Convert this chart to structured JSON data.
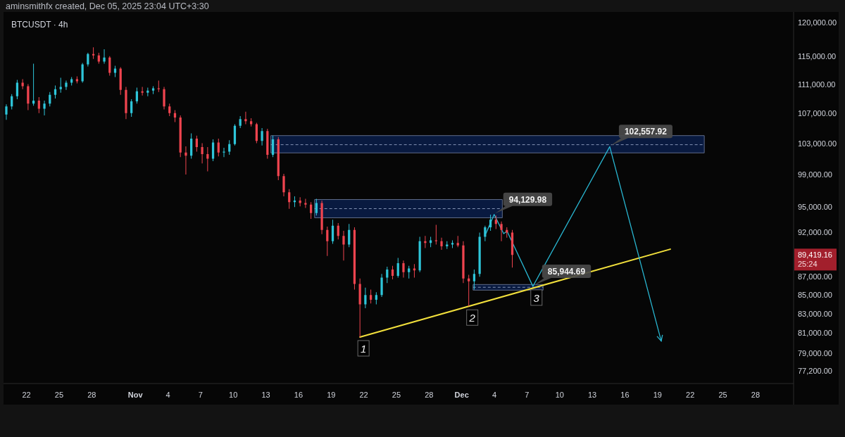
{
  "chart_data": {
    "type": "candlestick",
    "title": "BTCUSDT · 4h",
    "log": true,
    "xlim": [
      "2025-10-20T02:00",
      "2025-12-31T12:00"
    ],
    "ylim": [
      76000,
      121500
    ],
    "xticks": [
      {
        "value": "2025-10-22",
        "label": "22"
      },
      {
        "value": "2025-10-25",
        "label": "25"
      },
      {
        "value": "2025-10-28",
        "label": "28"
      },
      {
        "value": "2025-11-01",
        "label": "Nov"
      },
      {
        "value": "2025-11-04",
        "label": "4"
      },
      {
        "value": "2025-11-07",
        "label": "7"
      },
      {
        "value": "2025-11-10",
        "label": "10"
      },
      {
        "value": "2025-11-13",
        "label": "13"
      },
      {
        "value": "2025-11-16",
        "label": "16"
      },
      {
        "value": "2025-11-19",
        "label": "19"
      },
      {
        "value": "2025-11-22",
        "label": "22"
      },
      {
        "value": "2025-11-25",
        "label": "25"
      },
      {
        "value": "2025-11-28",
        "label": "28"
      },
      {
        "value": "2025-12-01",
        "label": "Dec"
      },
      {
        "value": "2025-12-04",
        "label": "4"
      },
      {
        "value": "2025-12-07",
        "label": "7"
      },
      {
        "value": "2025-12-10",
        "label": "10"
      },
      {
        "value": "2025-12-13",
        "label": "13"
      },
      {
        "value": "2025-12-16",
        "label": "16"
      },
      {
        "value": "2025-12-19",
        "label": "19"
      },
      {
        "value": "2025-12-22",
        "label": "22"
      },
      {
        "value": "2025-12-25",
        "label": "25"
      },
      {
        "value": "2025-12-28",
        "label": "28"
      }
    ],
    "yticks": [
      {
        "value": 120000,
        "label": "120,000.00"
      },
      {
        "value": 115000,
        "label": "115,000.00"
      },
      {
        "value": 111000,
        "label": "111,000.00"
      },
      {
        "value": 107000,
        "label": "107,000.00"
      },
      {
        "value": 103000,
        "label": "103,000.00"
      },
      {
        "value": 99000,
        "label": "99,000.00"
      },
      {
        "value": 95000,
        "label": "95,000.00"
      },
      {
        "value": 92000,
        "label": "92,000.00"
      },
      {
        "value": 87000,
        "label": "87,000.00"
      },
      {
        "value": 85000,
        "label": "85,000.00"
      },
      {
        "value": 83000,
        "label": "83,000.00"
      },
      {
        "value": 81000,
        "label": "81,000.00"
      },
      {
        "value": 79000,
        "label": "79,000.00"
      },
      {
        "value": 77200,
        "label": "77,200.00"
      }
    ],
    "x": [
      "2025-10-20T03:30",
      "2025-10-20T15:30",
      "2025-10-21T03:30",
      "2025-10-21T15:30",
      "2025-10-22T03:30",
      "2025-10-22T15:30",
      "2025-10-23T03:30",
      "2025-10-23T15:30",
      "2025-10-24T03:30",
      "2025-10-24T15:30",
      "2025-10-25T03:30",
      "2025-10-25T15:30",
      "2025-10-26T03:30",
      "2025-10-26T15:30",
      "2025-10-27T03:30",
      "2025-10-27T15:30",
      "2025-10-28T03:30",
      "2025-10-28T15:30",
      "2025-10-29T03:30",
      "2025-10-29T15:30",
      "2025-10-30T03:30",
      "2025-10-30T15:30",
      "2025-10-31T03:30",
      "2025-10-31T15:30",
      "2025-11-01T03:30",
      "2025-11-01T15:30",
      "2025-11-02T03:30",
      "2025-11-02T15:30",
      "2025-11-03T03:30",
      "2025-11-03T15:30",
      "2025-11-04T03:30",
      "2025-11-04T15:30",
      "2025-11-05T03:30",
      "2025-11-05T15:30",
      "2025-11-06T03:30",
      "2025-11-06T15:30",
      "2025-11-07T03:30",
      "2025-11-07T15:30",
      "2025-11-08T03:30",
      "2025-11-08T15:30",
      "2025-11-09T03:30",
      "2025-11-09T15:30",
      "2025-11-10T03:30",
      "2025-11-10T15:30",
      "2025-11-11T03:30",
      "2025-11-11T15:30",
      "2025-11-12T03:30",
      "2025-11-12T15:30",
      "2025-11-13T03:30",
      "2025-11-13T15:30",
      "2025-11-14T03:30",
      "2025-11-14T15:30",
      "2025-11-15T03:30",
      "2025-11-15T15:30",
      "2025-11-16T03:30",
      "2025-11-16T15:30",
      "2025-11-17T03:30",
      "2025-11-17T15:30",
      "2025-11-18T03:30",
      "2025-11-18T15:30",
      "2025-11-19T03:30",
      "2025-11-19T15:30",
      "2025-11-20T03:30",
      "2025-11-20T15:30",
      "2025-11-21T03:30",
      "2025-11-21T15:30",
      "2025-11-22T03:30",
      "2025-11-22T15:30",
      "2025-11-23T03:30",
      "2025-11-23T15:30",
      "2025-11-24T03:30",
      "2025-11-24T15:30",
      "2025-11-25T03:30",
      "2025-11-25T15:30",
      "2025-11-26T03:30",
      "2025-11-26T15:30",
      "2025-11-27T03:30",
      "2025-11-27T15:30",
      "2025-11-28T03:30",
      "2025-11-28T15:30",
      "2025-11-29T03:30",
      "2025-11-29T15:30",
      "2025-11-30T03:30",
      "2025-11-30T15:30",
      "2025-12-01T03:30",
      "2025-12-01T15:30",
      "2025-12-02T03:30",
      "2025-12-02T15:30",
      "2025-12-03T03:30",
      "2025-12-03T15:30",
      "2025-12-04T03:30",
      "2025-12-04T15:30",
      "2025-12-05T03:30",
      "2025-12-05T15:30"
    ],
    "ohlc": [
      [
        106800,
        108200,
        106100,
        107900
      ],
      [
        107900,
        109600,
        107500,
        109300
      ],
      [
        109300,
        111600,
        108900,
        111200
      ],
      [
        111200,
        111700,
        110300,
        110700
      ],
      [
        110700,
        111000,
        107400,
        108300
      ],
      [
        108300,
        113900,
        108000,
        108700
      ],
      [
        108700,
        109200,
        107000,
        107600
      ],
      [
        107600,
        108700,
        106700,
        108300
      ],
      [
        108300,
        109900,
        107900,
        109500
      ],
      [
        109500,
        110800,
        109000,
        110300
      ],
      [
        110300,
        111900,
        109800,
        110600
      ],
      [
        110600,
        111500,
        110200,
        111200
      ],
      [
        111200,
        112000,
        110800,
        111700
      ],
      [
        111700,
        112100,
        111100,
        111400
      ],
      [
        111400,
        114000,
        111200,
        113800
      ],
      [
        113800,
        115500,
        113500,
        115300
      ],
      [
        115300,
        116300,
        114600,
        115100
      ],
      [
        115100,
        115500,
        113900,
        114200
      ],
      [
        114200,
        116000,
        113900,
        114800
      ],
      [
        114800,
        115000,
        112200,
        112600
      ],
      [
        112600,
        113600,
        112000,
        113200
      ],
      [
        113200,
        113400,
        109500,
        110200
      ],
      [
        110200,
        110600,
        106200,
        107000
      ],
      [
        107000,
        108900,
        106500,
        108600
      ],
      [
        108600,
        110500,
        108300,
        110000
      ],
      [
        110000,
        110600,
        109400,
        109800
      ],
      [
        109800,
        110500,
        109300,
        110100
      ],
      [
        110100,
        110700,
        109600,
        110400
      ],
      [
        110400,
        111500,
        109900,
        110300
      ],
      [
        110300,
        110600,
        107500,
        107900
      ],
      [
        107900,
        108300,
        106600,
        107000
      ],
      [
        107000,
        107400,
        105800,
        106400
      ],
      [
        106400,
        106700,
        101200,
        101800
      ],
      [
        101800,
        102600,
        99000,
        101400
      ],
      [
        101400,
        104300,
        101000,
        103600
      ],
      [
        103600,
        104000,
        101900,
        102500
      ],
      [
        102500,
        103000,
        100400,
        101600
      ],
      [
        101600,
        102500,
        99400,
        101000
      ],
      [
        101000,
        103500,
        100700,
        103100
      ],
      [
        103100,
        103600,
        101300,
        101800
      ],
      [
        101800,
        102400,
        101200,
        101900
      ],
      [
        101900,
        103400,
        101500,
        102900
      ],
      [
        102900,
        105500,
        102700,
        105300
      ],
      [
        105300,
        106600,
        105000,
        106200
      ],
      [
        106200,
        107200,
        105500,
        105900
      ],
      [
        105900,
        106300,
        105200,
        105500
      ],
      [
        105500,
        105700,
        103000,
        103300
      ],
      [
        103300,
        105000,
        102700,
        104600
      ],
      [
        104600,
        104900,
        101000,
        101500
      ],
      [
        101500,
        104000,
        101200,
        103500
      ],
      [
        103500,
        103800,
        98300,
        98800
      ],
      [
        98800,
        99100,
        96300,
        96800
      ],
      [
        96800,
        97200,
        94800,
        95600
      ],
      [
        95600,
        96300,
        95000,
        95800
      ],
      [
        95800,
        96200,
        95100,
        95500
      ],
      [
        95500,
        96000,
        94900,
        95300
      ],
      [
        95300,
        95600,
        93600,
        94300
      ],
      [
        94300,
        96000,
        94000,
        95500
      ],
      [
        95500,
        95800,
        91800,
        92300
      ],
      [
        92300,
        92700,
        89300,
        91000
      ],
      [
        91000,
        93500,
        90700,
        92800
      ],
      [
        92800,
        93100,
        91200,
        91600
      ],
      [
        91600,
        92200,
        88800,
        90600
      ],
      [
        90600,
        93000,
        90300,
        92300
      ],
      [
        92300,
        92600,
        85600,
        86200
      ],
      [
        86200,
        86800,
        80600,
        84000
      ],
      [
        84000,
        85800,
        83600,
        85000
      ],
      [
        85000,
        85600,
        84100,
        84500
      ],
      [
        84500,
        85300,
        84000,
        85000
      ],
      [
        85000,
        87300,
        84800,
        86900
      ],
      [
        86900,
        88100,
        86300,
        87800
      ],
      [
        87800,
        88200,
        86700,
        87100
      ],
      [
        87100,
        89100,
        86900,
        88500
      ],
      [
        88500,
        88800,
        86900,
        87500
      ],
      [
        87500,
        88200,
        86800,
        87900
      ],
      [
        87900,
        88400,
        86900,
        87700
      ],
      [
        87700,
        91500,
        87500,
        91000
      ],
      [
        91000,
        91600,
        90200,
        90800
      ],
      [
        90800,
        91500,
        90300,
        91100
      ],
      [
        91100,
        92900,
        90600,
        91000
      ],
      [
        91000,
        91400,
        90000,
        90400
      ],
      [
        90400,
        91000,
        90100,
        90600
      ],
      [
        90600,
        91100,
        90200,
        90800
      ],
      [
        90800,
        91600,
        90300,
        90500
      ],
      [
        90500,
        91000,
        86300,
        86800
      ],
      [
        86800,
        87200,
        83800,
        86500
      ],
      [
        86500,
        87800,
        85600,
        87300
      ],
      [
        87300,
        92000,
        87000,
        91500
      ],
      [
        91500,
        92800,
        91000,
        92600
      ],
      [
        92600,
        94100,
        92200,
        93500
      ],
      [
        93500,
        94000,
        92400,
        93000
      ],
      [
        93000,
        93300,
        91000,
        92300
      ],
      [
        92300,
        92600,
        91400,
        92000
      ],
      [
        92000,
        92300,
        88000,
        89419.16
      ]
    ],
    "colors": [
      "#2ec5d9",
      "#2ec5d9",
      "#2ec5d9",
      "#f0444f",
      "#f0444f",
      "#2ec5d9",
      "#f0444f",
      "#2ec5d9",
      "#2ec5d9",
      "#2ec5d9",
      "#2ec5d9",
      "#2ec5d9",
      "#2ec5d9",
      "#f0444f",
      "#2ec5d9",
      "#2ec5d9",
      "#f0444f",
      "#f0444f",
      "#2ec5d9",
      "#f0444f",
      "#2ec5d9",
      "#f0444f",
      "#f0444f",
      "#2ec5d9",
      "#2ec5d9",
      "#f0444f",
      "#2ec5d9",
      "#2ec5d9",
      "#f0444f",
      "#f0444f",
      "#f0444f",
      "#f0444f",
      "#f0444f",
      "#f0444f",
      "#2ec5d9",
      "#f0444f",
      "#f0444f",
      "#f0444f",
      "#2ec5d9",
      "#f0444f",
      "#2ec5d9",
      "#2ec5d9",
      "#2ec5d9",
      "#2ec5d9",
      "#f0444f",
      "#f0444f",
      "#f0444f",
      "#2ec5d9",
      "#f0444f",
      "#2ec5d9",
      "#f0444f",
      "#f0444f",
      "#f0444f",
      "#2ec5d9",
      "#f0444f",
      "#f0444f",
      "#f0444f",
      "#2ec5d9",
      "#f0444f",
      "#f0444f",
      "#2ec5d9",
      "#f0444f",
      "#f0444f",
      "#2ec5d9",
      "#f0444f",
      "#f0444f",
      "#2ec5d9",
      "#f0444f",
      "#2ec5d9",
      "#2ec5d9",
      "#2ec5d9",
      "#f0444f",
      "#2ec5d9",
      "#f0444f",
      "#2ec5d9",
      "#f0444f",
      "#2ec5d9",
      "#f0444f",
      "#2ec5d9",
      "#f0444f",
      "#f0444f",
      "#2ec5d9",
      "#2ec5d9",
      "#f0444f",
      "#f0444f",
      "#f0444f",
      "#2ec5d9",
      "#2ec5d9",
      "#2ec5d9",
      "#2ec5d9",
      "#f0444f",
      "#f0444f",
      "#f0444f",
      "#f0444f"
    ],
    "series": [
      {
        "type": "line",
        "x": [
          "2025-11-13T11:00",
          "2025-12-23T07:00"
        ],
        "values": [
          102810,
          102810
        ],
        "lower": [
          101750,
          101750
        ],
        "upper": [
          104000,
          104000
        ],
        "color": "#8493b4",
        "line_style": "dashed"
      },
      {
        "type": "line",
        "x": [
          "2025-11-17T11:30",
          "2025-12-04T17:30"
        ],
        "values": [
          94820,
          94820
        ],
        "lower": [
          93730,
          93730
        ],
        "upper": [
          95920,
          95920
        ],
        "color": "#8493b4",
        "line_style": "dashed"
      },
      {
        "type": "line",
        "x": [
          "2025-12-02T01:00",
          "2025-12-08T11:30"
        ],
        "values": [
          85840,
          85840
        ],
        "lower": [
          85530,
          85530
        ],
        "upper": [
          86140,
          86140
        ],
        "color": "#8493b4",
        "line_style": "dashed"
      },
      {
        "type": "line",
        "x": [
          "2025-11-21T15:30",
          "2025-12-20T04:00"
        ],
        "values": [
          80600,
          90080
        ],
        "color": "#f2e03c",
        "line_style": "solid"
      },
      {
        "type": "line",
        "x": [
          "2025-12-03T05:30",
          "2025-12-03T23:30",
          "2025-12-04T20:30",
          "2025-12-05T04:00",
          "2025-12-07T13:00",
          "2025-12-14T14:30",
          "2025-12-19T08:00"
        ],
        "values": [
          91900,
          94129.98,
          91870,
          92150,
          85944.69,
          102557.92,
          80200
        ],
        "color": "#29b6d1",
        "line_style": "solid"
      }
    ],
    "annotations": [
      "aminsmithfx created, Dec 05, 2025 23:04 UTC+3:30",
      {
        "text": "102,557.92",
        "x": "2025-12-14T14:30",
        "y": 102557.92
      },
      {
        "text": "94,129.98",
        "x": "2025-12-03T23:30",
        "y": 94129.98
      },
      {
        "text": "85,944.69",
        "x": "2025-12-07T13:00",
        "y": 85944.69
      },
      {
        "text": "1",
        "x": "2025-11-21T15:30",
        "y": 80600
      },
      {
        "text": "2",
        "x": "2025-12-01T15:30",
        "y": 83800
      },
      {
        "text": "3",
        "x": "2025-12-07T13:00",
        "y": 85944.69
      },
      "89,419.16",
      "25:24"
    ]
  }
}
